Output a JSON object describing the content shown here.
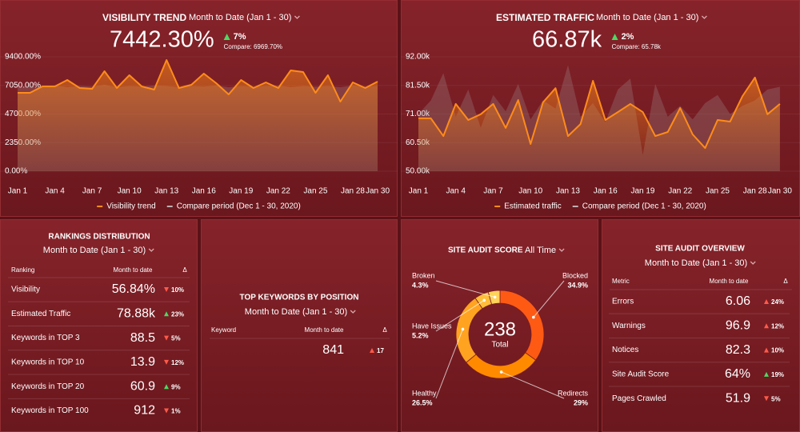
{
  "visibility_trend": {
    "title": "VISIBILITY TREND",
    "period": "Month to Date (Jan 1 - 30)",
    "value": "7442.30%",
    "delta": "7%",
    "direction": "up",
    "delta_color": "#4cd964",
    "compare": "Compare: 6969.70%",
    "chart_data": {
      "type": "area",
      "categories": [
        "Jan 1",
        null,
        null,
        "Jan 4",
        null,
        null,
        "Jan 7",
        null,
        null,
        "Jan 10",
        null,
        null,
        "Jan 13",
        null,
        null,
        "Jan 16",
        null,
        null,
        "Jan 19",
        null,
        null,
        "Jan 22",
        null,
        null,
        "Jan 25",
        null,
        null,
        "Jan 28",
        null,
        "Jan 30"
      ],
      "series": [
        {
          "name": "Visibility trend",
          "color": "#ff8c1a",
          "values": [
            6442,
            6442,
            6968,
            6968,
            7494,
            6836,
            6771,
            8217,
            6836,
            7888,
            6968,
            6705,
            9137,
            6836,
            7099,
            8020,
            7231,
            6311,
            7494,
            6836,
            7297,
            6836,
            8283,
            8151,
            6442,
            7888,
            5719,
            7297,
            6836,
            7362
          ]
        },
        {
          "name": "Compare period (Dec 1 - 30, 2020)",
          "color": "#a08a8c",
          "values": [
            6900,
            7000,
            6950,
            7050,
            6900,
            7000,
            6950,
            7100,
            6900,
            7000,
            6950,
            7050,
            7000,
            6900,
            7000,
            6950,
            7050,
            6900,
            7000,
            6950,
            7000,
            7050,
            6900,
            7000,
            6950,
            7000,
            6900,
            7050,
            6950,
            7000
          ]
        }
      ],
      "ylim": [
        0,
        9400
      ],
      "yticks": [
        {
          "value": 0,
          "label": "0.00%"
        },
        {
          "value": 2350,
          "label": "2350.00%"
        },
        {
          "value": 4700,
          "label": "4700.00%"
        },
        {
          "value": 7050,
          "label": "7050.00%"
        },
        {
          "value": 9400,
          "label": "9400.00%"
        }
      ]
    }
  },
  "estimated_traffic": {
    "title": "ESTIMATED TRAFFIC",
    "period": "Month to Date (Jan 1 - 30)",
    "value": "66.87k",
    "delta": "2%",
    "direction": "up",
    "delta_color": "#4cd964",
    "compare": "Compare: 65.78k",
    "chart_data": {
      "type": "area",
      "categories": [
        "Jan 1",
        null,
        null,
        "Jan 4",
        null,
        null,
        "Jan 7",
        null,
        null,
        "Jan 10",
        null,
        null,
        "Jan 13",
        null,
        null,
        "Jan 16",
        null,
        null,
        "Jan 19",
        null,
        null,
        "Jan 22",
        null,
        null,
        "Jan 25",
        null,
        null,
        "Jan 28",
        null,
        "Jan 30"
      ],
      "series": [
        {
          "name": "Estimated traffic",
          "color": "#ff8c1a",
          "values": [
            69400,
            69400,
            62900,
            74700,
            68800,
            70900,
            74700,
            65900,
            76100,
            60000,
            75300,
            80500,
            62900,
            67300,
            83200,
            68800,
            71700,
            74700,
            71700,
            62900,
            64400,
            73200,
            63500,
            58500,
            68800,
            68200,
            77600,
            84400,
            70900,
            74700
          ]
        },
        {
          "name": "Compare period (Dec 1 - 30, 2020)",
          "color": "#a08a8c",
          "values": [
            71000,
            76000,
            86000,
            70000,
            80000,
            66000,
            78000,
            72000,
            82000,
            69000,
            76000,
            73000,
            89000,
            70000,
            75000,
            68000,
            80000,
            84000,
            56000,
            82000,
            70000,
            74000,
            69000,
            75000,
            78000,
            71000,
            74000,
            76000,
            80000,
            81000
          ]
        }
      ],
      "ylim": [
        50000,
        92000
      ],
      "yticks": [
        {
          "value": 50000,
          "label": "50.00k"
        },
        {
          "value": 60500,
          "label": "60.50k"
        },
        {
          "value": 71000,
          "label": "71.00k"
        },
        {
          "value": 81500,
          "label": "81.50k"
        },
        {
          "value": 92000,
          "label": "92.00k"
        }
      ]
    }
  },
  "rankings_distribution": {
    "title": "RANKINGS DISTRIBUTION",
    "period": "Month to Date (Jan 1 - 30)",
    "columns": [
      "Ranking",
      "Month to date",
      "Δ"
    ],
    "rows": [
      {
        "label": "Visibility",
        "value": "56.84%",
        "delta": "10%",
        "direction": "down",
        "delta_color": "#ff5a4a"
      },
      {
        "label": "Estimated Traffic",
        "value": "78.88k",
        "delta": "23%",
        "direction": "up",
        "delta_color": "#4cd964"
      },
      {
        "label": "Keywords in TOP 3",
        "value": "88.5",
        "delta": "5%",
        "direction": "down",
        "delta_color": "#ff5a4a"
      },
      {
        "label": "Keywords in TOP 10",
        "value": "13.9",
        "delta": "12%",
        "direction": "down",
        "delta_color": "#ff5a4a"
      },
      {
        "label": "Keywords in TOP 20",
        "value": "60.9",
        "delta": "9%",
        "direction": "up",
        "delta_color": "#4cd964"
      },
      {
        "label": "Keywords in TOP 100",
        "value": "912",
        "delta": "1%",
        "direction": "down",
        "delta_color": "#ff5a4a"
      }
    ]
  },
  "top_keywords": {
    "title": "TOP KEYWORDS BY POSITION",
    "period": "Month to Date (Jan 1 - 30)",
    "columns": [
      "Keyword",
      "Month to date",
      "Δ"
    ],
    "rows": [
      {
        "value": "841",
        "delta": "17",
        "direction": "up",
        "delta_color": "#ff5a4a"
      }
    ]
  },
  "site_audit_score": {
    "title": "SITE AUDIT SCORE",
    "period": "All Time",
    "total": "238",
    "total_label": "Total",
    "chart_data": {
      "type": "donut",
      "categories": [
        "Blocked",
        "Redirects",
        "Healthy",
        "Have Issues",
        "Broken"
      ],
      "values": [
        34.9,
        29,
        26.5,
        5.2,
        4.3
      ],
      "value_labels": [
        "34.9%",
        "29%",
        "26.5%",
        "5.2%",
        "4.3%"
      ],
      "colors": [
        "#ff5a14",
        "#ff8a00",
        "#ffa320",
        "#ffbf3a",
        "#ffd35a"
      ]
    }
  },
  "site_audit_overview": {
    "title": "SITE AUDIT OVERVIEW",
    "period": "Month to Date (Jan 1 - 30)",
    "columns": [
      "Metric",
      "Month to date",
      "Δ"
    ],
    "rows": [
      {
        "label": "Errors",
        "value": "6.06",
        "delta": "24%",
        "direction": "up",
        "delta_color": "#ff5a4a"
      },
      {
        "label": "Warnings",
        "value": "96.9",
        "delta": "12%",
        "direction": "up",
        "delta_color": "#ff5a4a"
      },
      {
        "label": "Notices",
        "value": "82.3",
        "delta": "10%",
        "direction": "up",
        "delta_color": "#ff5a4a"
      },
      {
        "label": "Site Audit Score",
        "value": "64%",
        "delta": "19%",
        "direction": "up",
        "delta_color": "#4cd964"
      },
      {
        "label": "Pages Crawled",
        "value": "51.9",
        "delta": "5%",
        "direction": "down",
        "delta_color": "#ff5a4a"
      }
    ]
  }
}
